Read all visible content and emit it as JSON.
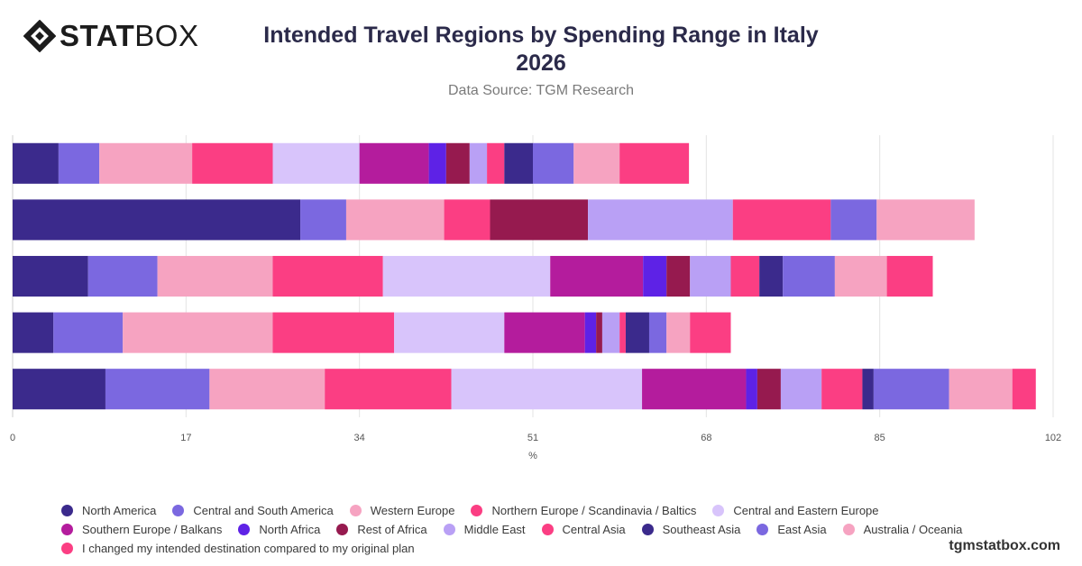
{
  "brand": {
    "logo_bold": "STAT",
    "logo_light": "BOX",
    "watermark": "tgmstatbox.com"
  },
  "header": {
    "title_line1": "Intended Travel Regions by Spending Range in Italy",
    "title_line2": "2026",
    "source": "Data Source: TGM Research"
  },
  "chart_data": {
    "type": "bar",
    "orientation": "horizontal",
    "stacked": true,
    "xlabel": "%",
    "ylabel": "",
    "xlim": [
      0,
      102
    ],
    "xticks": [
      0,
      17,
      34,
      51,
      68,
      85,
      102
    ],
    "grid": true,
    "legend_position": "bottom",
    "categories": [
      "",
      "",
      "",
      "",
      ""
    ],
    "series": [
      {
        "name": "North America",
        "color": "#3b2a8c",
        "values": [
          4.5,
          28.2,
          7.4,
          4.0,
          9.1
        ]
      },
      {
        "name": "Central and South America",
        "color": "#7b68e0",
        "values": [
          4.0,
          4.5,
          6.8,
          6.8,
          10.2
        ]
      },
      {
        "name": "Western Europe",
        "color": "#f6a3c1",
        "values": [
          9.1,
          9.6,
          11.3,
          14.7,
          11.3
        ]
      },
      {
        "name": "Northern Europe / Scandinavia / Baltics",
        "color": "#fb3e83",
        "values": [
          7.9,
          4.5,
          10.8,
          11.9,
          12.4
        ]
      },
      {
        "name": "Central and Eastern Europe",
        "color": "#d8c4fb",
        "values": [
          8.5,
          0,
          16.4,
          10.8,
          18.7
        ]
      },
      {
        "name": "Southern Europe / Balkans",
        "color": "#b41c9d",
        "values": [
          6.8,
          0,
          9.1,
          7.9,
          10.2
        ]
      },
      {
        "name": "North Africa",
        "color": "#5e22e6",
        "values": [
          1.7,
          0,
          2.3,
          1.1,
          1.1
        ]
      },
      {
        "name": "Rest of Africa",
        "color": "#961a4f",
        "values": [
          2.3,
          9.6,
          2.3,
          0.6,
          2.3
        ]
      },
      {
        "name": "Middle East",
        "color": "#b9a0f5",
        "values": [
          1.7,
          14.2,
          4.0,
          1.7,
          4.0
        ]
      },
      {
        "name": "Central Asia",
        "color": "#fb3e83",
        "values": [
          1.7,
          9.6,
          2.8,
          0.6,
          4.0
        ]
      },
      {
        "name": "Southeast Asia",
        "color": "#3b2a8c",
        "values": [
          2.8,
          0,
          2.3,
          2.3,
          1.1
        ]
      },
      {
        "name": "East Asia",
        "color": "#7b68e0",
        "values": [
          4.0,
          4.5,
          5.1,
          1.7,
          7.4
        ]
      },
      {
        "name": "Australia / Oceania",
        "color": "#f6a3c1",
        "values": [
          4.5,
          9.6,
          5.1,
          2.3,
          6.2
        ]
      },
      {
        "name": "I changed my intended destination compared to my original plan",
        "color": "#fb3e83",
        "values": [
          6.8,
          0,
          4.5,
          4.0,
          2.3
        ]
      }
    ]
  }
}
